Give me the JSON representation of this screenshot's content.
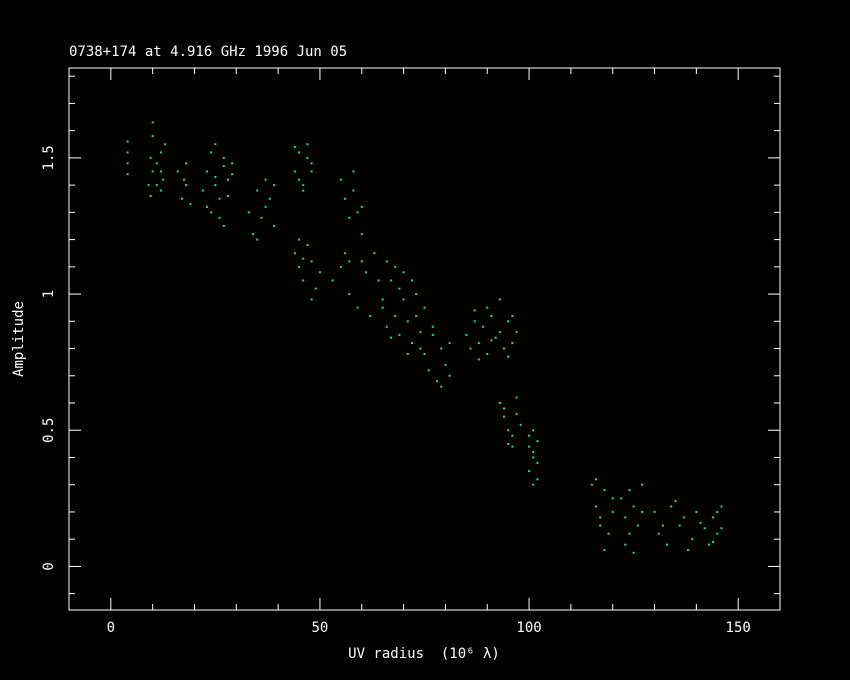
{
  "chart_data": {
    "type": "scatter",
    "title": "0738+174 at 4.916 GHz 1996 Jun 05",
    "x_label": "UV radius  (10⁶ λ)",
    "y_label": "Amplitude",
    "color": "#00e68a",
    "xlim": [
      -10,
      160
    ],
    "ylim": [
      -0.16,
      1.83
    ],
    "xticks": [
      0,
      50,
      100,
      150
    ],
    "yticks": [
      0,
      0.5,
      1,
      1.5
    ],
    "xminorticks": [
      -10,
      10,
      20,
      30,
      40,
      60,
      70,
      80,
      90,
      110,
      120,
      130,
      140,
      160
    ],
    "yminorticks": [
      -0.1,
      0.1,
      0.2,
      0.3,
      0.4,
      0.6,
      0.7,
      0.8,
      0.9,
      1.1,
      1.2,
      1.3,
      1.4,
      1.6,
      1.7,
      1.8
    ],
    "x": [
      4,
      4,
      4,
      4,
      9,
      9.5,
      10,
      10,
      10,
      9.5,
      12,
      12,
      12,
      12.5,
      13,
      11,
      11,
      17,
      17.5,
      18,
      18,
      16,
      19,
      22,
      23,
      24,
      25,
      26,
      27,
      28,
      24,
      25,
      26,
      27,
      29,
      23,
      28,
      29,
      25,
      27,
      33,
      34,
      35,
      36,
      37,
      38,
      39,
      35,
      37,
      39,
      44,
      45,
      46,
      47,
      48,
      45,
      47,
      46,
      44,
      48,
      44,
      45,
      46,
      47,
      48,
      49,
      50,
      46,
      48,
      45,
      55,
      56,
      57,
      58,
      59,
      60,
      56,
      58,
      60,
      57,
      53,
      55,
      57,
      59,
      61,
      63,
      65,
      62,
      64,
      60,
      65,
      66,
      67,
      68,
      69,
      70,
      71,
      72,
      73,
      74,
      68,
      70,
      72,
      74,
      75,
      66,
      71,
      73,
      69,
      67,
      75,
      76,
      77,
      78,
      79,
      80,
      81,
      77,
      79,
      81,
      85,
      86,
      87,
      88,
      89,
      90,
      91,
      92,
      93,
      94,
      95,
      96,
      97,
      90,
      88,
      96,
      93,
      87,
      91,
      95,
      93,
      94,
      95,
      96,
      97,
      98,
      95,
      97,
      94,
      96,
      100,
      101,
      102,
      100,
      101,
      102,
      100,
      101,
      102,
      101,
      115,
      116,
      117,
      118,
      119,
      120,
      116,
      118,
      120,
      117,
      122,
      123,
      124,
      125,
      126,
      127,
      123,
      125,
      127,
      124,
      130,
      131,
      133,
      134,
      136,
      137,
      139,
      140,
      142,
      143,
      144,
      145,
      146,
      132,
      135,
      138,
      141,
      144,
      146,
      145
    ],
    "values": [
      1.44,
      1.48,
      1.52,
      1.56,
      1.4,
      1.5,
      1.58,
      1.63,
      1.45,
      1.36,
      1.38,
      1.45,
      1.52,
      1.42,
      1.55,
      1.48,
      1.4,
      1.35,
      1.42,
      1.48,
      1.4,
      1.45,
      1.33,
      1.38,
      1.45,
      1.52,
      1.4,
      1.35,
      1.47,
      1.42,
      1.3,
      1.55,
      1.28,
      1.5,
      1.44,
      1.32,
      1.36,
      1.48,
      1.43,
      1.25,
      1.3,
      1.22,
      1.38,
      1.28,
      1.42,
      1.35,
      1.25,
      1.2,
      1.32,
      1.4,
      1.45,
      1.52,
      1.4,
      1.55,
      1.48,
      1.42,
      1.5,
      1.38,
      1.54,
      1.45,
      1.15,
      1.1,
      1.05,
      1.18,
      1.12,
      1.02,
      1.08,
      1.13,
      0.98,
      1.2,
      1.42,
      1.35,
      1.28,
      1.38,
      1.3,
      1.22,
      1.15,
      1.45,
      1.32,
      1.12,
      1.05,
      1.1,
      1.0,
      0.95,
      1.08,
      1.15,
      0.98,
      0.92,
      1.05,
      1.12,
      0.95,
      0.88,
      1.05,
      0.92,
      0.85,
      1.08,
      0.9,
      0.82,
      1.0,
      0.86,
      1.1,
      0.98,
      1.05,
      0.8,
      0.95,
      1.12,
      0.78,
      0.92,
      1.02,
      0.84,
      0.78,
      0.72,
      0.85,
      0.68,
      0.8,
      0.74,
      0.7,
      0.88,
      0.66,
      0.82,
      0.85,
      0.8,
      0.9,
      0.82,
      0.88,
      0.78,
      0.92,
      0.84,
      0.86,
      0.8,
      0.9,
      0.82,
      0.86,
      0.95,
      0.76,
      0.92,
      0.98,
      0.94,
      0.83,
      0.77,
      0.6,
      0.55,
      0.5,
      0.48,
      0.62,
      0.52,
      0.45,
      0.56,
      0.58,
      0.44,
      0.48,
      0.42,
      0.38,
      0.35,
      0.5,
      0.32,
      0.44,
      0.3,
      0.46,
      0.4,
      0.3,
      0.22,
      0.18,
      0.28,
      0.12,
      0.25,
      0.32,
      0.06,
      0.2,
      0.15,
      0.25,
      0.18,
      0.12,
      0.22,
      0.15,
      0.3,
      0.08,
      0.05,
      0.2,
      0.28,
      0.2,
      0.12,
      0.08,
      0.22,
      0.15,
      0.18,
      0.1,
      0.2,
      0.14,
      0.08,
      0.18,
      0.12,
      0.22,
      0.15,
      0.24,
      0.06,
      0.16,
      0.09,
      0.14,
      0.2
    ]
  }
}
